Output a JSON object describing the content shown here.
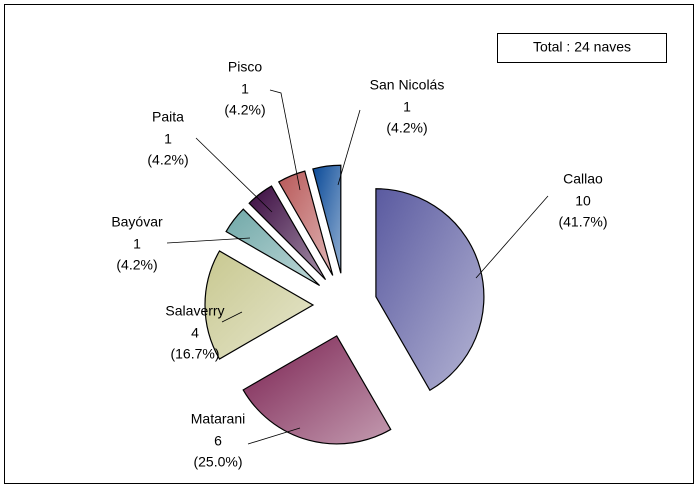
{
  "chart_data": {
    "type": "pie",
    "annotation": "Total : 24 naves",
    "categories": [
      "Callao",
      "Matarani",
      "Salaverry",
      "Bayóvar",
      "Paita",
      "Pisco",
      "San Nicolás"
    ],
    "values": [
      10,
      6,
      4,
      1,
      1,
      1,
      1
    ],
    "percentages": [
      41.7,
      25.0,
      16.7,
      4.2,
      4.2,
      4.2,
      4.2
    ],
    "percentage_labels": [
      "(41.7%)",
      "(25.0%)",
      "(16.7%)",
      "(4.2%)",
      "(4.2%)",
      "(4.2%)",
      "(4.2%)"
    ],
    "colors": [
      "#5a5aa0",
      "#7a2050",
      "#c8c890",
      "#70a8a8",
      "#3a0a40",
      "#b85858",
      "#0a4a98"
    ]
  }
}
